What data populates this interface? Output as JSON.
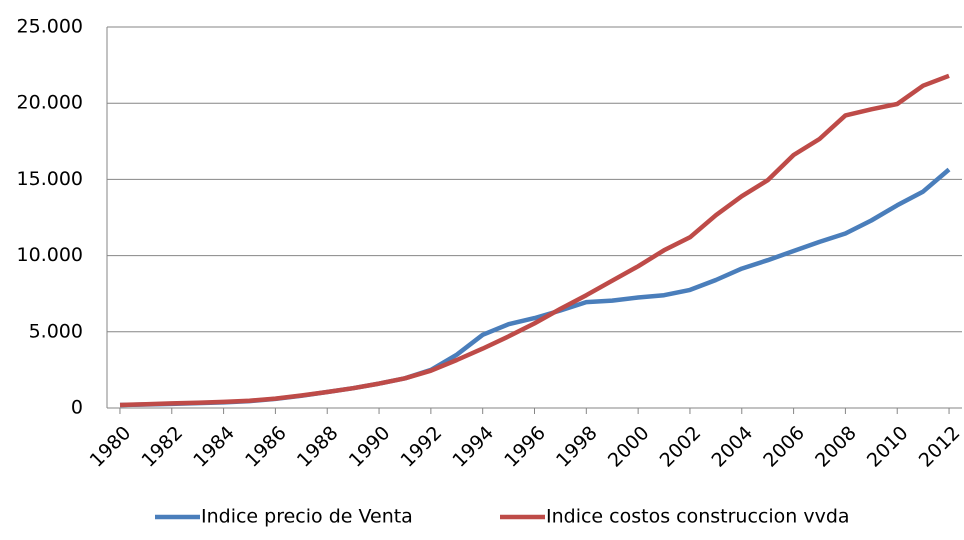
{
  "chart_data": {
    "type": "line",
    "categories": [
      "1980",
      null,
      "1982",
      null,
      "1984",
      null,
      "1986",
      null,
      "1988",
      null,
      "1990",
      null,
      "1992",
      null,
      "1994",
      null,
      "1996",
      null,
      "1998",
      null,
      "2000",
      null,
      "2002",
      null,
      "2004",
      null,
      "2006",
      null,
      "2008",
      null,
      "2010",
      null,
      "2012"
    ],
    "series": [
      {
        "name": "Indice precio de Venta",
        "color": "#4a7ebb",
        "values": [
          200,
          230,
          270,
          320,
          370,
          450,
          600,
          800,
          1050,
          1300,
          1600,
          1950,
          2500,
          3500,
          4800,
          5500,
          5900,
          6400,
          6950,
          7050,
          7250,
          7400,
          7750,
          8400,
          9150,
          9700,
          10300,
          10900,
          11450,
          12300,
          13300,
          14200,
          15650
        ]
      },
      {
        "name": "Indice costos construccion vvda",
        "color": "#be4b48",
        "values": [
          200,
          250,
          300,
          350,
          400,
          480,
          620,
          820,
          1050,
          1300,
          1600,
          1950,
          2450,
          3150,
          3900,
          4700,
          5550,
          6500,
          7400,
          8350,
          9300,
          10350,
          11200,
          12650,
          13900,
          14950,
          16600,
          17650,
          19200,
          19600,
          19950,
          21150,
          21800
        ]
      }
    ],
    "ylim": [
      0,
      25000
    ],
    "yticks": [
      0,
      {
        "value": 5000,
        "label": "5.000"
      },
      {
        "value": 10000,
        "label": "10.000"
      },
      {
        "value": 15000,
        "label": "15.000"
      },
      {
        "value": 20000,
        "label": "20.000"
      },
      {
        "value": 25000,
        "label": "25.000"
      }
    ],
    "grid": true,
    "legend": "bottom"
  }
}
